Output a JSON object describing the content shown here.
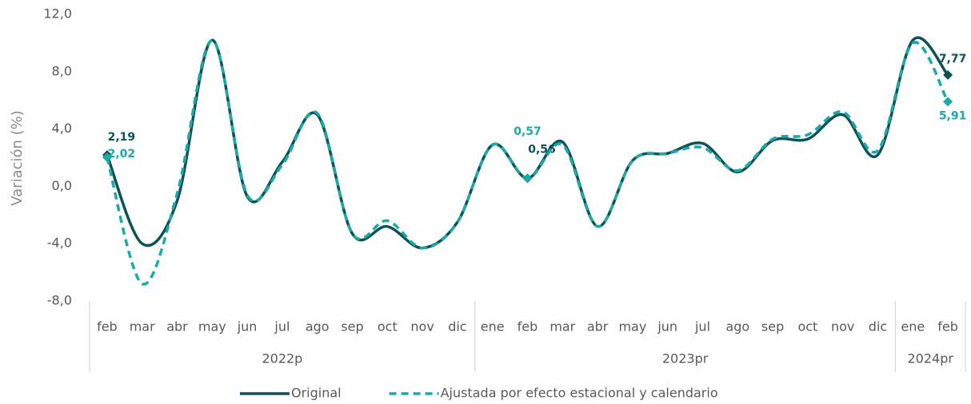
{
  "chart_data": {
    "type": "line",
    "y_axis_label": "Variación (%)",
    "category_groups": [
      {
        "label": "2022p",
        "categories": [
          "feb",
          "mar",
          "abr",
          "may",
          "jun",
          "jul",
          "ago",
          "sep",
          "oct",
          "nov",
          "dic"
        ]
      },
      {
        "label": "2023pr",
        "categories": [
          "ene",
          "feb",
          "mar",
          "abr",
          "may",
          "jun",
          "jul",
          "ago",
          "sep",
          "oct",
          "nov",
          "dic"
        ]
      },
      {
        "label": "2024pr",
        "categories": [
          "ene",
          "feb"
        ]
      }
    ],
    "series": [
      {
        "name": "Original",
        "color": "#0d5257",
        "dashed": false,
        "values": [
          2.19,
          -4.0,
          -1.0,
          10.2,
          -0.7,
          1.7,
          5.0,
          -3.3,
          -2.8,
          -4.3,
          -2.5,
          2.9,
          0.56,
          3.1,
          -2.8,
          1.8,
          2.3,
          3.0,
          1.0,
          3.2,
          3.3,
          5.0,
          2.2,
          10.2,
          7.77
        ],
        "value_labels": [
          "2,19",
          null,
          null,
          null,
          null,
          null,
          null,
          null,
          null,
          null,
          null,
          null,
          "0,56",
          null,
          null,
          null,
          null,
          null,
          null,
          null,
          null,
          null,
          null,
          null,
          "7,77"
        ]
      },
      {
        "name": "Ajustada por efecto estacional y calendario",
        "color": "#1ba9a9",
        "dashed": true,
        "values": [
          2.02,
          -6.8,
          -0.5,
          10.2,
          -0.6,
          1.5,
          5.1,
          -3.3,
          -2.4,
          -4.3,
          -2.5,
          2.9,
          0.57,
          2.9,
          -2.8,
          1.8,
          2.3,
          2.7,
          1.1,
          3.3,
          3.6,
          5.2,
          2.5,
          10.0,
          5.91
        ],
        "value_labels": [
          "2,02",
          null,
          null,
          null,
          null,
          null,
          null,
          null,
          null,
          null,
          null,
          null,
          "0,57",
          null,
          null,
          null,
          null,
          null,
          null,
          null,
          null,
          null,
          null,
          null,
          "5,91"
        ]
      }
    ],
    "ylim": [
      -8,
      12
    ],
    "yticks": [
      {
        "value": -8,
        "label": "-8,0"
      },
      {
        "value": -4,
        "label": "-4,0"
      },
      {
        "value": 0,
        "label": "0,0"
      },
      {
        "value": 4,
        "label": "4,0"
      },
      {
        "value": 8,
        "label": "8,0"
      },
      {
        "value": 12,
        "label": "12,0"
      }
    ],
    "grid": false
  }
}
